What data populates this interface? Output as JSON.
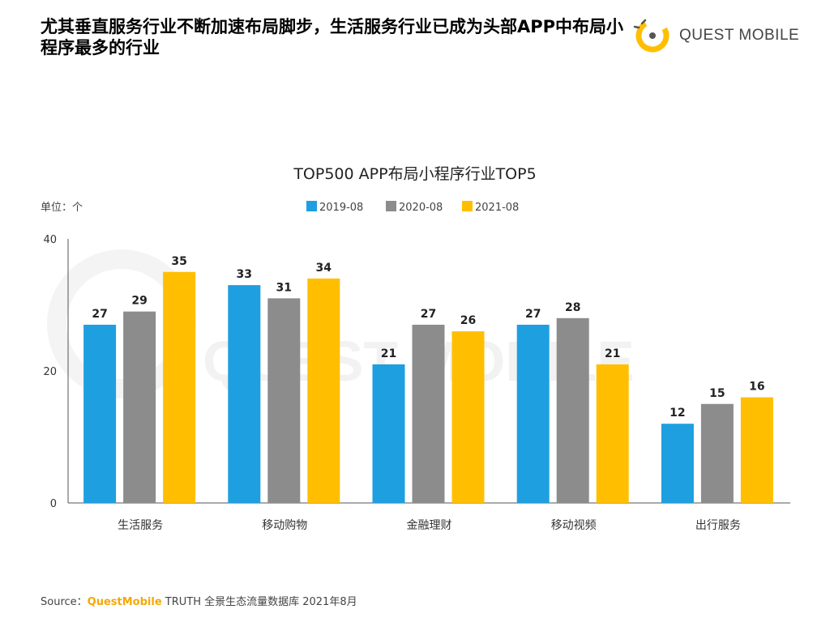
{
  "headline": "尤其垂直服务行业不断加速布局脚步，生活服务行业已成为头部APP中布局小程序最多的行业",
  "logo": {
    "text": "QUEST MOBILE",
    "watermark": "QUEST MOBILE"
  },
  "source": {
    "prefix": "Source：",
    "brand": "QuestMobile",
    "suffix": " TRUTH 全景生态流量数据库 2021年8月"
  },
  "chart_data": {
    "type": "bar",
    "title": "TOP500 APP布局小程序行业TOP5",
    "unit_label": "单位：个",
    "categories": [
      "生活服务",
      "移动购物",
      "金融理财",
      "移动视频",
      "出行服务"
    ],
    "series": [
      {
        "name": "2019-08",
        "color": "#1e9fe0",
        "values": [
          27,
          33,
          21,
          27,
          12
        ]
      },
      {
        "name": "2020-08",
        "color": "#8c8c8c",
        "values": [
          29,
          31,
          27,
          28,
          15
        ]
      },
      {
        "name": "2021-08",
        "color": "#ffbf00",
        "values": [
          35,
          34,
          26,
          21,
          16
        ]
      }
    ],
    "yticks": [
      0,
      20,
      40
    ],
    "ylim": [
      0,
      40
    ],
    "legend_position": "top-center",
    "grid": false
  }
}
